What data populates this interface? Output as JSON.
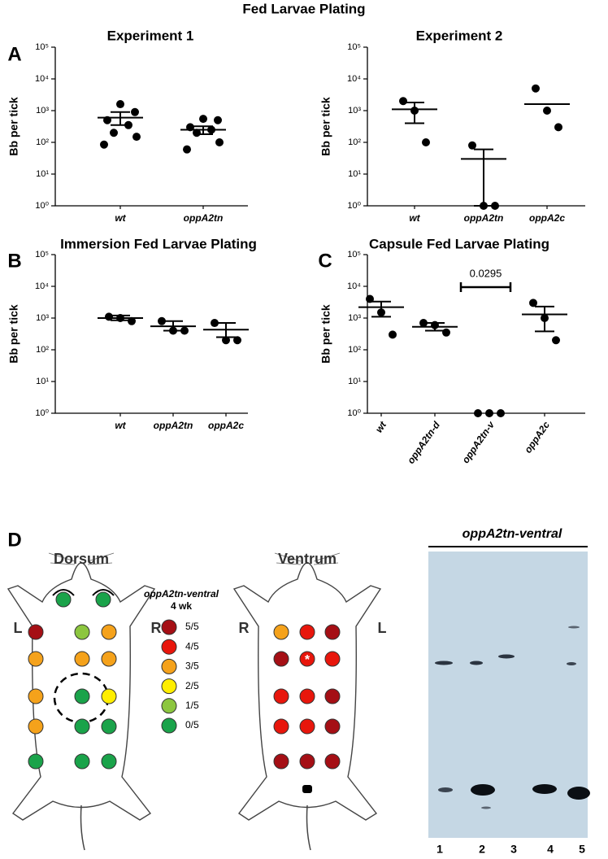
{
  "figure_title": "Fed Larvae Plating",
  "panels": [
    "A",
    "B",
    "C",
    "D"
  ],
  "chart_data": [
    {
      "type": "scatter",
      "title": "Experiment 1",
      "ylabel": "Bb per tick",
      "log": true,
      "categories": [
        "wt",
        "oppA2tn"
      ],
      "points": [
        [
          1600,
          900,
          500,
          350,
          200,
          150,
          85
        ],
        [
          550,
          500,
          300,
          250,
          200,
          100,
          60
        ]
      ],
      "means": [
        600,
        250
      ],
      "err_high": [
        900,
        320
      ],
      "err_low": [
        350,
        180
      ],
      "ylim": [
        1,
        100000
      ],
      "yticks": [
        {
          "value": 1,
          "label": "10⁰"
        },
        {
          "value": 10,
          "label": "10¹"
        },
        {
          "value": 100,
          "label": "10²"
        },
        {
          "value": 1000,
          "label": "10³"
        },
        {
          "value": 10000,
          "label": "10⁴"
        },
        {
          "value": 100000,
          "label": "10⁵"
        }
      ]
    },
    {
      "type": "scatter",
      "title": "Experiment 2",
      "ylabel": "Bb per tick",
      "log": true,
      "categories": [
        "wt",
        "oppA2tn",
        "oppA2c"
      ],
      "points": [
        [
          2000,
          1000,
          100
        ],
        [
          80,
          1,
          1
        ],
        [
          5000,
          1000,
          300
        ]
      ],
      "means": [
        1100,
        30,
        1600
      ],
      "err_high": [
        1800,
        60,
        1600
      ],
      "err_low": [
        400,
        1,
        1600
      ],
      "ylim": [
        1,
        100000
      ],
      "yticks": [
        {
          "value": 1,
          "label": "10⁰"
        },
        {
          "value": 10,
          "label": "10¹"
        },
        {
          "value": 100,
          "label": "10²"
        },
        {
          "value": 1000,
          "label": "10³"
        },
        {
          "value": 10000,
          "label": "10⁴"
        },
        {
          "value": 100000,
          "label": "10⁵"
        }
      ]
    },
    {
      "type": "scatter",
      "title": "Immersion Fed Larvae Plating",
      "ylabel": "Bb per tick",
      "log": true,
      "categories": [
        "wt",
        "oppA2tn",
        "oppA2c"
      ],
      "points": [
        [
          1100,
          1000,
          800
        ],
        [
          800,
          400,
          400
        ],
        [
          700,
          200,
          200
        ]
      ],
      "means": [
        1000,
        550,
        430
      ],
      "err_high": [
        1200,
        800,
        700
      ],
      "err_low": [
        850,
        400,
        250
      ],
      "ylim": [
        1,
        100000
      ],
      "yticks": [
        {
          "value": 1,
          "label": "10⁰"
        },
        {
          "value": 10,
          "label": "10¹"
        },
        {
          "value": 100,
          "label": "10²"
        },
        {
          "value": 1000,
          "label": "10³"
        },
        {
          "value": 10000,
          "label": "10⁴"
        },
        {
          "value": 100000,
          "label": "10⁵"
        }
      ]
    },
    {
      "type": "scatter",
      "title": "Capsule Fed Larvae Plating",
      "ylabel": "Bb per tick",
      "log": true,
      "rotate_labels": true,
      "categories": [
        "wt",
        "oppA2tn-d",
        "oppA2tn-v",
        "oppA2c"
      ],
      "points": [
        [
          4000,
          1500,
          300
        ],
        [
          700,
          600,
          350
        ],
        [
          1,
          1,
          1
        ],
        [
          3000,
          1000,
          200
        ]
      ],
      "means": [
        2200,
        530,
        null,
        1300
      ],
      "err_high": [
        3300,
        700,
        null,
        2300
      ],
      "err_low": [
        1100,
        400,
        null,
        380
      ],
      "annotation": "0.0295",
      "ylim": [
        1,
        100000
      ],
      "yticks": [
        {
          "value": 1,
          "label": "10⁰"
        },
        {
          "value": 10,
          "label": "10¹"
        },
        {
          "value": 100,
          "label": "10²"
        },
        {
          "value": 1000,
          "label": "10³"
        },
        {
          "value": 10000,
          "label": "10⁴"
        },
        {
          "value": 100000,
          "label": "10⁵"
        }
      ]
    }
  ],
  "panel_d": {
    "dorsum": {
      "label": "Dorsum",
      "left": "L",
      "right": "R",
      "head_spots": [
        "#1aa34a",
        "#1aa34a"
      ],
      "spots": [
        [
          "#a50f15",
          "#8cc63f",
          "#f5a21b"
        ],
        [
          "#f5a21b",
          "#f5a21b",
          "#f5a21b"
        ],
        [
          "#f5a21b",
          "#1aa34a",
          "#ffee00"
        ],
        [
          "#f5a21b",
          "#1aa34a",
          "#1aa34a"
        ],
        [
          "#1aa34a",
          "#1aa34a",
          "#1aa34a"
        ]
      ]
    },
    "ventrum": {
      "label": "Ventrum",
      "left": "R",
      "right": "L",
      "marker": "*",
      "spots": [
        [
          "#f5a21b",
          "#e8160c",
          "#a50f15"
        ],
        [
          "#a50f15",
          "#e8160c",
          "#e8160c"
        ],
        [
          "#e8160c",
          "#e8160c",
          "#a50f15"
        ],
        [
          "#e8160c",
          "#e8160c",
          "#a50f15"
        ],
        [
          "#a50f15",
          "#a50f15",
          "#a50f15"
        ]
      ]
    },
    "legend_title": "oppA2tn-ventral",
    "legend_subtitle": "4 wk",
    "legend": [
      {
        "label": "5/5",
        "color": "#a50f15"
      },
      {
        "label": "4/5",
        "color": "#e8160c"
      },
      {
        "label": "3/5",
        "color": "#f5a21b"
      },
      {
        "label": "2/5",
        "color": "#ffee00"
      },
      {
        "label": "1/5",
        "color": "#8cc63f"
      },
      {
        "label": "0/5",
        "color": "#1aa34a"
      }
    ],
    "gel_title": "oppA2tn-ventral",
    "lanes": [
      "1",
      "2",
      "3",
      "4",
      "5"
    ]
  }
}
